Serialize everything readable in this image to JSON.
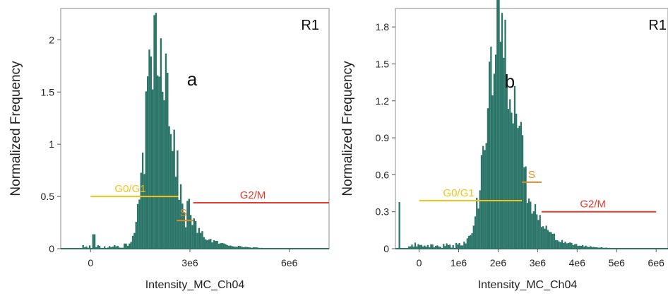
{
  "chart_data": [
    {
      "type": "histogram",
      "panel_label": "a",
      "region_label": "R1",
      "xlabel": "Intensity_MC_Ch04",
      "ylabel": "Normalized Frequency",
      "xlim": [
        -900000,
        7200000
      ],
      "ylim": [
        0,
        2.3
      ],
      "xticks": [
        0,
        3000000,
        6000000
      ],
      "xtick_labels": [
        "0",
        "3e6",
        "6e6"
      ],
      "yticks": [
        0,
        0.5,
        1,
        1.5,
        2
      ],
      "ytick_labels": [
        "0",
        "0.5",
        "1",
        "1.5",
        "2"
      ],
      "bar_color": "#2a7468",
      "bin_width": 50000,
      "distribution": {
        "peak_x": 2000000,
        "peak_y": 2.12,
        "left_sigma": 300000,
        "right_sigma": 430000,
        "tail_level": 0.25,
        "tail_start": 2900000,
        "tail_decay": 650000,
        "debris_x": 100000,
        "debris_y": 0.12,
        "noise_seed": 17
      },
      "gates": [
        {
          "name": "G0/G1",
          "color": "#f0c419",
          "x_start": 0,
          "x_end": 2650000,
          "y": 0.5,
          "label_x": 1200000
        },
        {
          "name": "S",
          "color": "#e08a2a",
          "x_start": 2600000,
          "x_end": 3100000,
          "y": 0.27,
          "label_x": 2800000
        },
        {
          "name": "G2/M",
          "color": "#e53b2c",
          "x_start": 3100000,
          "x_end": 7200000,
          "y": 0.44,
          "label_x": 4900000
        }
      ]
    },
    {
      "type": "histogram",
      "panel_label": "b",
      "region_label": "R1",
      "xlabel": "Intensity_MC_Ch04",
      "ylabel": "Normalized Frequency",
      "xlim": [
        -600000,
        6300000
      ],
      "ylim": [
        0,
        1.95
      ],
      "xticks": [
        0,
        1000000,
        2000000,
        3000000,
        4000000,
        5000000,
        6000000
      ],
      "xtick_labels": [
        "0",
        "1e6",
        "2e6",
        "3e6",
        "4e6",
        "5e6",
        "6e6"
      ],
      "yticks": [
        0,
        0.3,
        0.6,
        0.9,
        1.2,
        1.5,
        1.8
      ],
      "ytick_labels": [
        "0",
        "0.3",
        "0.6",
        "0.9",
        "1.2",
        "1.5",
        "1.8"
      ],
      "bar_color": "#2a7468",
      "bin_width": 40000,
      "distribution": {
        "peak_x": 2050000,
        "peak_y": 1.75,
        "left_sigma": 330000,
        "right_sigma": 430000,
        "tail_level": 0.22,
        "tail_start": 2900000,
        "tail_decay": 550000,
        "debris_x": -500000,
        "debris_y": 0.31,
        "noise_seed": 41
      },
      "gates": [
        {
          "name": "G0/G1",
          "color": "#f0c419",
          "x_start": 0,
          "x_end": 2600000,
          "y": 0.39,
          "label_x": 1000000
        },
        {
          "name": "S",
          "color": "#e08a2a",
          "x_start": 2600000,
          "x_end": 3100000,
          "y": 0.54,
          "label_x": 2850000
        },
        {
          "name": "G2/M",
          "color": "#e53b2c",
          "x_start": 3100000,
          "x_end": 6000000,
          "y": 0.3,
          "label_x": 4400000
        }
      ]
    }
  ]
}
